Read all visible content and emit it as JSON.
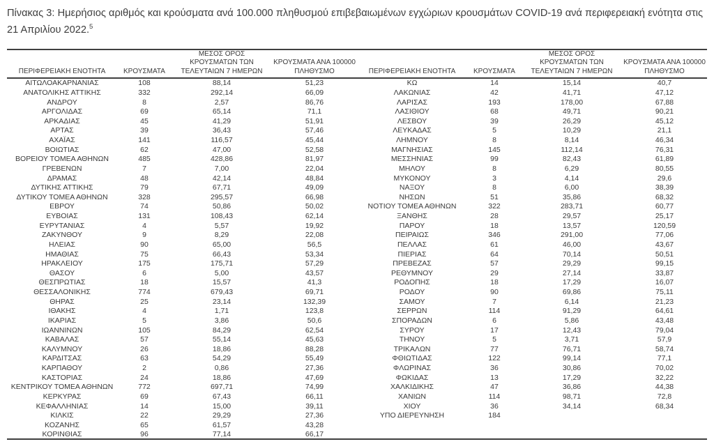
{
  "page": {
    "title": "Πίνακας 3:  Ημερήσιος αριθμός και κρούσματα ανά 100.000 πληθυσμού επιβεβαιωμένων εγχώριων κρουσμάτων COVID-19 ανά περιφερειακή ενότητα στις 21 Απριλίου 2022.",
    "title_footnote": "5"
  },
  "table": {
    "headers": {
      "region": "ΠΕΡΙΦΕΡΕΙΑΚΗ ΕΝΟΤΗΤΑ",
      "cases": "ΚΡΟΥΣΜΑΤΑ",
      "avg7": "ΜΕΣΟΣ ΟΡΟΣ\nΚΡΟΥΣΜΑΤΩΝ ΤΩΝ\nΤΕΛΕΥΤΑΙΩΝ 7 ΗΜΕΡΩΝ",
      "per100k": "ΚΡΟΥΣΜΑΤΑ ΑΝΑ 100000\nΠΛΗΘΥΣΜΟ"
    },
    "left_rows": [
      [
        "ΑΙΤΩΛΟΑΚΑΡΝΑΝΙΑΣ",
        "108",
        "88,14",
        "51,23"
      ],
      [
        "ΑΝΑΤΟΛΙΚΗΣ ΑΤΤΙΚΗΣ",
        "332",
        "292,14",
        "66,09"
      ],
      [
        "ΑΝΔΡΟΥ",
        "8",
        "2,57",
        "86,76"
      ],
      [
        "ΑΡΓΟΛΙΔΑΣ",
        "69",
        "65,14",
        "71,1"
      ],
      [
        "ΑΡΚΑΔΙΑΣ",
        "45",
        "41,29",
        "51,91"
      ],
      [
        "ΑΡΤΑΣ",
        "39",
        "36,43",
        "57,46"
      ],
      [
        "ΑΧΑΪΑΣ",
        "141",
        "116,57",
        "45,44"
      ],
      [
        "ΒΟΙΩΤΙΑΣ",
        "62",
        "47,00",
        "52,58"
      ],
      [
        "ΒΟΡΕΙΟΥ ΤΟΜΕΑ ΑΘΗΝΩΝ",
        "485",
        "428,86",
        "81,97"
      ],
      [
        "ΓΡΕΒΕΝΩΝ",
        "7",
        "7,00",
        "22,04"
      ],
      [
        "ΔΡΑΜΑΣ",
        "48",
        "42,14",
        "48,84"
      ],
      [
        "ΔΥΤΙΚΗΣ ΑΤΤΙΚΗΣ",
        "79",
        "67,71",
        "49,09"
      ],
      [
        "ΔΥΤΙΚΟΥ ΤΟΜΕΑ ΑΘΗΝΩΝ",
        "328",
        "295,57",
        "66,98"
      ],
      [
        "ΕΒΡΟΥ",
        "74",
        "50,86",
        "50,02"
      ],
      [
        "ΕΥΒΟΙΑΣ",
        "131",
        "108,43",
        "62,14"
      ],
      [
        "ΕΥΡΥΤΑΝΙΑΣ",
        "4",
        "5,57",
        "19,92"
      ],
      [
        "ΖΑΚΥΝΘΟΥ",
        "9",
        "8,29",
        "22,08"
      ],
      [
        "ΗΛΕΙΑΣ",
        "90",
        "65,00",
        "56,5"
      ],
      [
        "ΗΜΑΘΙΑΣ",
        "75",
        "66,43",
        "53,34"
      ],
      [
        "ΗΡΑΚΛΕΙΟΥ",
        "175",
        "175,71",
        "57,29"
      ],
      [
        "ΘΑΣΟΥ",
        "6",
        "5,00",
        "43,57"
      ],
      [
        "ΘΕΣΠΡΩΤΙΑΣ",
        "18",
        "15,57",
        "41,3"
      ],
      [
        "ΘΕΣΣΑΛΟΝΙΚΗΣ",
        "774",
        "679,43",
        "69,71"
      ],
      [
        "ΘΗΡΑΣ",
        "25",
        "23,14",
        "132,39"
      ],
      [
        "ΙΘΑΚΗΣ",
        "4",
        "1,71",
        "123,8"
      ],
      [
        "ΙΚΑΡΙΑΣ",
        "5",
        "3,86",
        "50,6"
      ],
      [
        "ΙΩΑΝΝΙΝΩΝ",
        "105",
        "84,29",
        "62,54"
      ],
      [
        "ΚΑΒΑΛΑΣ",
        "57",
        "55,14",
        "45,63"
      ],
      [
        "ΚΑΛΥΜΝΟΥ",
        "26",
        "18,86",
        "88,28"
      ],
      [
        "ΚΑΡΔΙΤΣΑΣ",
        "63",
        "54,29",
        "55,49"
      ],
      [
        "ΚΑΡΠΑΘΟΥ",
        "2",
        "0,86",
        "27,36"
      ],
      [
        "ΚΑΣΤΟΡΙΑΣ",
        "24",
        "18,86",
        "47,69"
      ],
      [
        "ΚΕΝΤΡΙΚΟΥ ΤΟΜΕΑ ΑΘΗΝΩΝ",
        "772",
        "697,71",
        "74,99"
      ],
      [
        "ΚΕΡΚΥΡΑΣ",
        "69",
        "67,43",
        "66,11"
      ],
      [
        "ΚΕΦΑΛΛΗΝΙΑΣ",
        "14",
        "15,00",
        "39,11"
      ],
      [
        "ΚΙΛΚΙΣ",
        "22",
        "29,29",
        "27,36"
      ],
      [
        "ΚΟΖΑΝΗΣ",
        "65",
        "61,57",
        "43,28"
      ],
      [
        "ΚΟΡΙΝΘΙΑΣ",
        "96",
        "77,14",
        "66,17"
      ]
    ],
    "right_rows": [
      [
        "ΚΩ",
        "14",
        "15,14",
        "40,7"
      ],
      [
        "ΛΑΚΩΝΙΑΣ",
        "42",
        "41,71",
        "47,12"
      ],
      [
        "ΛΑΡΙΣΑΣ",
        "193",
        "178,00",
        "67,88"
      ],
      [
        "ΛΑΣΙΘΙΟΥ",
        "68",
        "49,71",
        "90,21"
      ],
      [
        "ΛΕΣΒΟΥ",
        "39",
        "26,29",
        "45,12"
      ],
      [
        "ΛΕΥΚΑΔΑΣ",
        "5",
        "10,29",
        "21,1"
      ],
      [
        "ΛΗΜΝΟΥ",
        "8",
        "8,14",
        "46,34"
      ],
      [
        "ΜΑΓΝΗΣΙΑΣ",
        "145",
        "112,14",
        "76,31"
      ],
      [
        "ΜΕΣΣΗΝΙΑΣ",
        "99",
        "82,43",
        "61,89"
      ],
      [
        "ΜΗΛΟΥ",
        "8",
        "6,29",
        "80,55"
      ],
      [
        "ΜΥΚΟΝΟΥ",
        "3",
        "4,14",
        "29,6"
      ],
      [
        "ΝΑΞΟΥ",
        "8",
        "6,00",
        "38,39"
      ],
      [
        "ΝΗΣΩΝ",
        "51",
        "35,86",
        "68,32"
      ],
      [
        "ΝΟΤΙΟΥ ΤΟΜΕΑ ΑΘΗΝΩΝ",
        "322",
        "283,71",
        "60,77"
      ],
      [
        "ΞΑΝΘΗΣ",
        "28",
        "29,57",
        "25,17"
      ],
      [
        "ΠΑΡΟΥ",
        "18",
        "13,57",
        "120,59"
      ],
      [
        "ΠΕΙΡΑΙΩΣ",
        "346",
        "291,00",
        "77,06"
      ],
      [
        "ΠΕΛΛΑΣ",
        "61",
        "46,00",
        "43,67"
      ],
      [
        "ΠΙΕΡΙΑΣ",
        "64",
        "70,14",
        "50,51"
      ],
      [
        "ΠΡΕΒΕΖΑΣ",
        "57",
        "29,29",
        "99,15"
      ],
      [
        "ΡΕΘΥΜΝΟΥ",
        "29",
        "27,14",
        "33,87"
      ],
      [
        "ΡΟΔΟΠΗΣ",
        "18",
        "17,29",
        "16,07"
      ],
      [
        "ΡΟΔΟΥ",
        "90",
        "69,86",
        "75,11"
      ],
      [
        "ΣΑΜΟΥ",
        "7",
        "6,14",
        "21,23"
      ],
      [
        "ΣΕΡΡΩΝ",
        "114",
        "91,29",
        "64,61"
      ],
      [
        "ΣΠΟΡΑΔΩΝ",
        "6",
        "5,86",
        "43,48"
      ],
      [
        "ΣΥΡΟΥ",
        "17",
        "12,43",
        "79,04"
      ],
      [
        "ΤΗΝΟΥ",
        "5",
        "3,71",
        "57,9"
      ],
      [
        "ΤΡΙΚΑΛΩΝ",
        "77",
        "76,71",
        "58,74"
      ],
      [
        "ΦΘΙΩΤΙΔΑΣ",
        "122",
        "99,14",
        "77,1"
      ],
      [
        "ΦΛΩΡΙΝΑΣ",
        "36",
        "30,86",
        "70,02"
      ],
      [
        "ΦΩΚΙΔΑΣ",
        "13",
        "17,29",
        "32,22"
      ],
      [
        "ΧΑΛΚΙΔΙΚΗΣ",
        "47",
        "36,86",
        "44,38"
      ],
      [
        "ΧΑΝΙΩΝ",
        "114",
        "98,71",
        "72,8"
      ],
      [
        "ΧΙΟΥ",
        "36",
        "34,14",
        "68,34"
      ],
      [
        "ΥΠΟ ΔΙΕΡΕΥΝΗΣΗ",
        "184",
        "",
        ""
      ]
    ]
  }
}
